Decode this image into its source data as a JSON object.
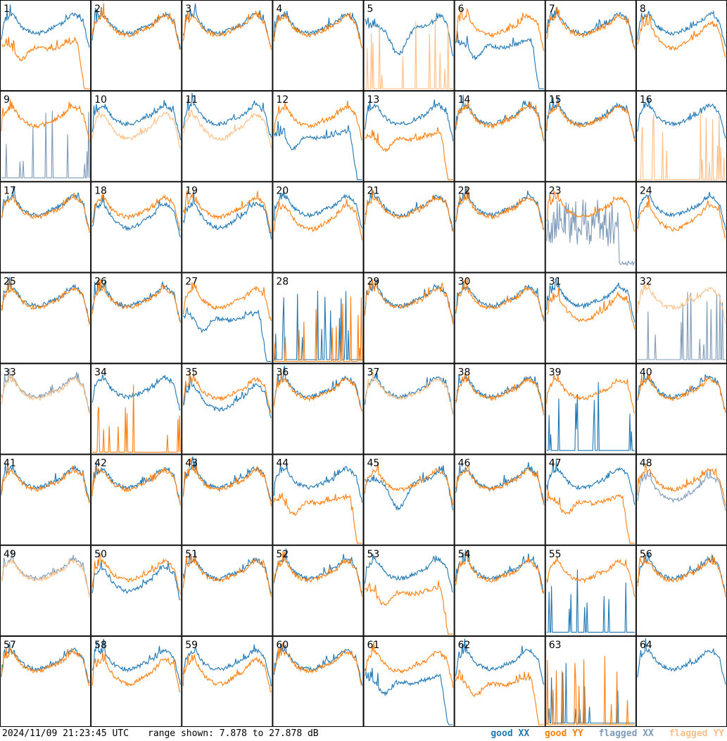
{
  "footer": {
    "timestamp": "2024/11/09 21:23:45 UTC",
    "range_text": "range shown: 7.878 to 27.878 dB"
  },
  "legend": {
    "good_xx": "good XX",
    "good_yy": "good YY",
    "flagged_xx": "flagged XX",
    "flagged_yy": "flagged YY"
  },
  "colors": {
    "good_xx": "#1f77b4",
    "good_yy": "#ff7f0e",
    "flagged_xx": "#7f9bb8",
    "flagged_yy": "#ffbf85"
  },
  "chart_data": {
    "type": "line",
    "grid_rows": 8,
    "grid_cols": 8,
    "y_range_db": [
      7.878,
      27.878
    ],
    "panels": [
      {
        "id": 1,
        "xx": "good",
        "yy": "good",
        "xx_shape": "typical",
        "yy_shape": "lowdrop"
      },
      {
        "id": 2,
        "xx": "good",
        "yy": "good",
        "xx_shape": "typical",
        "yy_shape": "typical"
      },
      {
        "id": 3,
        "xx": "good",
        "yy": "good",
        "xx_shape": "typical",
        "yy_shape": "typical"
      },
      {
        "id": 4,
        "xx": "good",
        "yy": "good",
        "xx_shape": "typical",
        "yy_shape": "typical"
      },
      {
        "id": 5,
        "xx": "good",
        "yy": "flagged",
        "xx_shape": "dip",
        "yy_shape": "spikes"
      },
      {
        "id": 6,
        "xx": "good",
        "yy": "good",
        "xx_shape": "lowdrop",
        "yy_shape": "typical"
      },
      {
        "id": 7,
        "xx": "good",
        "yy": "good",
        "xx_shape": "typical",
        "yy_shape": "typical"
      },
      {
        "id": 8,
        "xx": "good",
        "yy": "good",
        "xx_shape": "typical",
        "yy_shape": "low"
      },
      {
        "id": 9,
        "xx": "flagged",
        "yy": "good",
        "xx_shape": "spikes",
        "yy_shape": "typical"
      },
      {
        "id": 10,
        "xx": "good",
        "yy": "flagged",
        "xx_shape": "typical",
        "yy_shape": "low"
      },
      {
        "id": 11,
        "xx": "good",
        "yy": "flagged",
        "xx_shape": "typical",
        "yy_shape": "low"
      },
      {
        "id": 12,
        "xx": "good",
        "yy": "good",
        "xx_shape": "lowdrop",
        "yy_shape": "typical"
      },
      {
        "id": 13,
        "xx": "good",
        "yy": "good",
        "xx_shape": "typical",
        "yy_shape": "lowdrop"
      },
      {
        "id": 14,
        "xx": "good",
        "yy": "good",
        "xx_shape": "typical",
        "yy_shape": "typical"
      },
      {
        "id": 15,
        "xx": "good",
        "yy": "good",
        "xx_shape": "typical",
        "yy_shape": "typical"
      },
      {
        "id": 16,
        "xx": "good",
        "yy": "flagged",
        "xx_shape": "typical",
        "yy_shape": "spikes"
      },
      {
        "id": 17,
        "xx": "good",
        "yy": "good",
        "xx_shape": "typical",
        "yy_shape": "typical"
      },
      {
        "id": 18,
        "xx": "good",
        "yy": "good",
        "xx_shape": "low",
        "yy_shape": "typical"
      },
      {
        "id": 19,
        "xx": "good",
        "yy": "good",
        "xx_shape": "low",
        "yy_shape": "typical"
      },
      {
        "id": 20,
        "xx": "good",
        "yy": "good",
        "xx_shape": "typical",
        "yy_shape": "low"
      },
      {
        "id": 21,
        "xx": "good",
        "yy": "good",
        "xx_shape": "typical",
        "yy_shape": "typical"
      },
      {
        "id": 22,
        "xx": "good",
        "yy": "good",
        "xx_shape": "typical",
        "yy_shape": "typical"
      },
      {
        "id": 23,
        "xx": "flagged",
        "yy": "good",
        "xx_shape": "noisy",
        "yy_shape": "typical"
      },
      {
        "id": 24,
        "xx": "good",
        "yy": "good",
        "xx_shape": "typical",
        "yy_shape": "low"
      },
      {
        "id": 25,
        "xx": "good",
        "yy": "good",
        "xx_shape": "typical",
        "yy_shape": "typical"
      },
      {
        "id": 26,
        "xx": "good",
        "yy": "good",
        "xx_shape": "typical",
        "yy_shape": "typical"
      },
      {
        "id": 27,
        "xx": "good",
        "yy": "good",
        "xx_shape": "lowdrop",
        "yy_shape": "typical"
      },
      {
        "id": 28,
        "xx": "good",
        "yy": "good",
        "xx_shape": "spikes",
        "yy_shape": "spikes"
      },
      {
        "id": 29,
        "xx": "good",
        "yy": "good",
        "xx_shape": "typical",
        "yy_shape": "typical"
      },
      {
        "id": 30,
        "xx": "good",
        "yy": "good",
        "xx_shape": "typical",
        "yy_shape": "typical"
      },
      {
        "id": 31,
        "xx": "good",
        "yy": "good",
        "xx_shape": "typical",
        "yy_shape": "low"
      },
      {
        "id": 32,
        "xx": "flagged",
        "yy": "flagged",
        "xx_shape": "spikes",
        "yy_shape": "typical"
      },
      {
        "id": 33,
        "xx": "flagged",
        "yy": "flagged",
        "xx_shape": "typical",
        "yy_shape": "typical"
      },
      {
        "id": 34,
        "xx": "good",
        "yy": "good",
        "xx_shape": "typical",
        "yy_shape": "spikes"
      },
      {
        "id": 35,
        "xx": "good",
        "yy": "good",
        "xx_shape": "low",
        "yy_shape": "typical"
      },
      {
        "id": 36,
        "xx": "good",
        "yy": "good",
        "xx_shape": "typical",
        "yy_shape": "typical"
      },
      {
        "id": 37,
        "xx": "good",
        "yy": "flagged",
        "xx_shape": "typical",
        "yy_shape": "typical"
      },
      {
        "id": 38,
        "xx": "good",
        "yy": "good",
        "xx_shape": "typical",
        "yy_shape": "typical"
      },
      {
        "id": 39,
        "xx": "good",
        "yy": "good",
        "xx_shape": "spikes",
        "yy_shape": "typical"
      },
      {
        "id": 40,
        "xx": "good",
        "yy": "good",
        "xx_shape": "typical",
        "yy_shape": "typical"
      },
      {
        "id": 41,
        "xx": "good",
        "yy": "good",
        "xx_shape": "typical",
        "yy_shape": "typical"
      },
      {
        "id": 42,
        "xx": "good",
        "yy": "good",
        "xx_shape": "typical",
        "yy_shape": "typical"
      },
      {
        "id": 43,
        "xx": "good",
        "yy": "good",
        "xx_shape": "typical",
        "yy_shape": "typical"
      },
      {
        "id": 44,
        "xx": "good",
        "yy": "good",
        "xx_shape": "typical",
        "yy_shape": "lowdrop"
      },
      {
        "id": 45,
        "xx": "good",
        "yy": "good",
        "xx_shape": "dip",
        "yy_shape": "typical"
      },
      {
        "id": 46,
        "xx": "good",
        "yy": "good",
        "xx_shape": "typical",
        "yy_shape": "typical"
      },
      {
        "id": 47,
        "xx": "good",
        "yy": "good",
        "xx_shape": "typical",
        "yy_shape": "lowdrop"
      },
      {
        "id": 48,
        "xx": "flagged",
        "yy": "good",
        "xx_shape": "low",
        "yy_shape": "typical"
      },
      {
        "id": 49,
        "xx": "flagged",
        "yy": "flagged",
        "xx_shape": "typical",
        "yy_shape": "typical"
      },
      {
        "id": 50,
        "xx": "good",
        "yy": "good",
        "xx_shape": "low",
        "yy_shape": "typical"
      },
      {
        "id": 51,
        "xx": "good",
        "yy": "good",
        "xx_shape": "typical",
        "yy_shape": "typical"
      },
      {
        "id": 52,
        "xx": "good",
        "yy": "good",
        "xx_shape": "typical",
        "yy_shape": "typical"
      },
      {
        "id": 53,
        "xx": "good",
        "yy": "good",
        "xx_shape": "typical",
        "yy_shape": "lowdrop"
      },
      {
        "id": 54,
        "xx": "good",
        "yy": "good",
        "xx_shape": "typical",
        "yy_shape": "typical"
      },
      {
        "id": 55,
        "xx": "good",
        "yy": "good",
        "xx_shape": "spikes",
        "yy_shape": "typical"
      },
      {
        "id": 56,
        "xx": "good",
        "yy": "good",
        "xx_shape": "typical",
        "yy_shape": "typical"
      },
      {
        "id": 57,
        "xx": "good",
        "yy": "good",
        "xx_shape": "typical",
        "yy_shape": "typical"
      },
      {
        "id": 58,
        "xx": "good",
        "yy": "good",
        "xx_shape": "typical",
        "yy_shape": "low"
      },
      {
        "id": 59,
        "xx": "good",
        "yy": "good",
        "xx_shape": "typical",
        "yy_shape": "low"
      },
      {
        "id": 60,
        "xx": "good",
        "yy": "good",
        "xx_shape": "typical",
        "yy_shape": "typical"
      },
      {
        "id": 61,
        "xx": "good",
        "yy": "good",
        "xx_shape": "lowdrop",
        "yy_shape": "typical"
      },
      {
        "id": 62,
        "xx": "good",
        "yy": "good",
        "xx_shape": "typical",
        "yy_shape": "lowdrop"
      },
      {
        "id": 63,
        "xx": "good",
        "yy": "good",
        "xx_shape": "spikes",
        "yy_shape": "spikes"
      },
      {
        "id": 64,
        "xx": "good",
        "yy": "good",
        "xx_shape": "typical",
        "yy_shape": "none"
      }
    ]
  }
}
